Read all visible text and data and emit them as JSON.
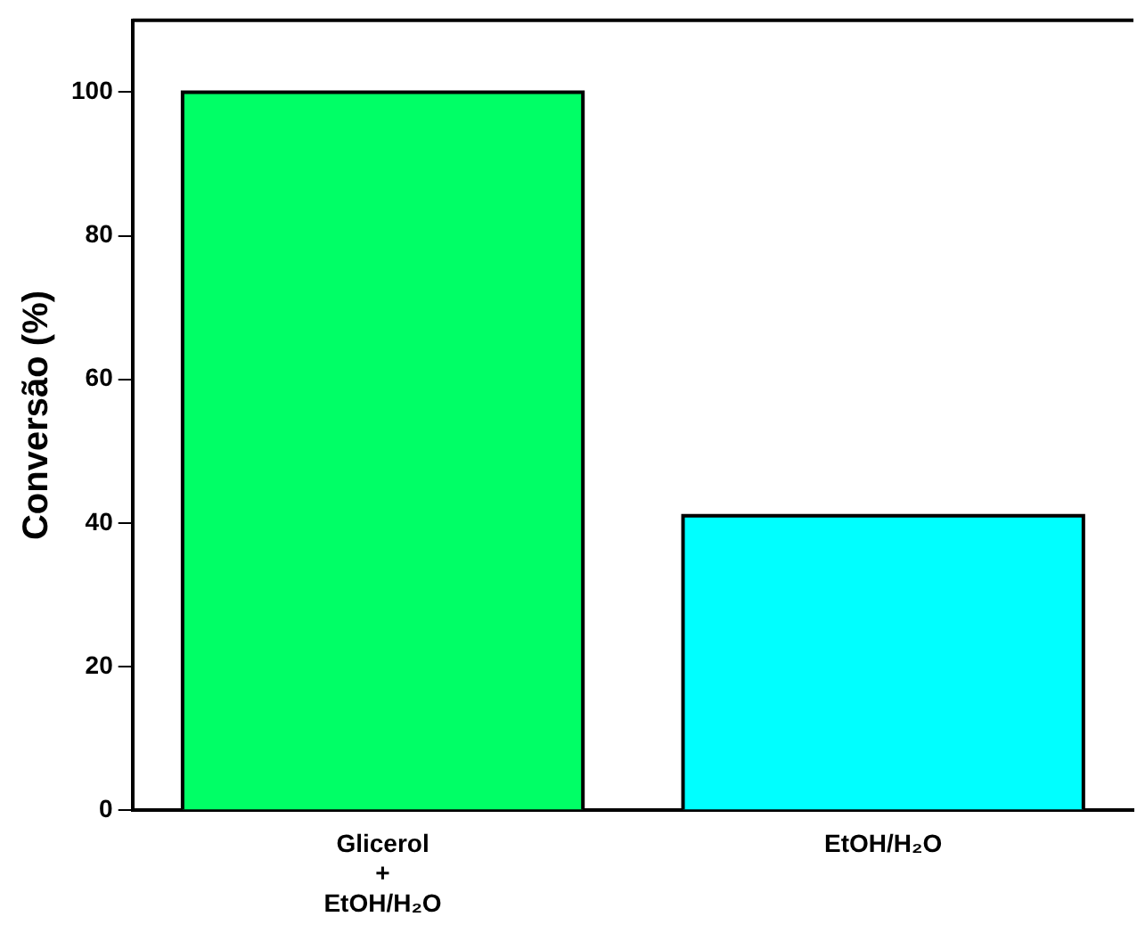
{
  "chart_data": {
    "type": "bar",
    "ylabel": "Conversão (%)",
    "categories": [
      "Glicerol\n+\nEtOH/H₂O",
      "EtOH/H₂O"
    ],
    "values": [
      100,
      41
    ],
    "colors": [
      "#00ff66",
      "#00ffff"
    ],
    "ylim": [
      0,
      110
    ],
    "yticks": [
      0,
      20,
      40,
      60,
      80,
      100
    ],
    "grid": false,
    "legend": false
  }
}
